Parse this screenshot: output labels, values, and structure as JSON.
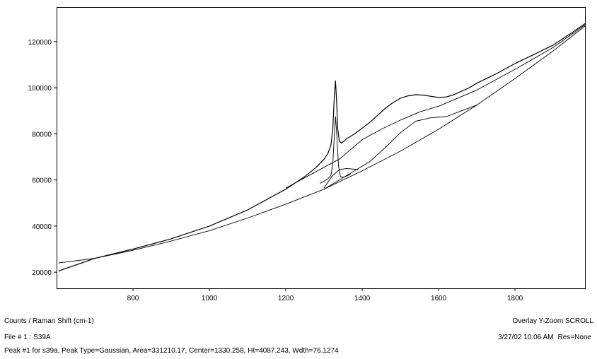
{
  "chart_data": {
    "type": "line",
    "xlim": [
      600,
      1985
    ],
    "ylim": [
      13000,
      135000
    ],
    "xticks": [
      800,
      1000,
      1200,
      1400,
      1600,
      1800
    ],
    "yticks": [
      20000,
      40000,
      60000,
      80000,
      100000,
      120000
    ],
    "xtick_labels": [
      "800",
      "1000",
      "1200",
      "1400",
      "1600",
      "1800"
    ],
    "ytick_labels": [
      "20000",
      "40000",
      "60000",
      "80000",
      "100000",
      "120000"
    ],
    "grid": false,
    "series": [
      {
        "role": "spectrum",
        "x": [
          605,
          700,
          800,
          900,
          1000,
          1100,
          1200,
          1250,
          1280,
          1300,
          1310,
          1318,
          1323,
          1327,
          1330,
          1333,
          1336,
          1340,
          1345,
          1350,
          1360,
          1380,
          1400,
          1420,
          1440,
          1460,
          1480,
          1500,
          1520,
          1540,
          1560,
          1580,
          1600,
          1620,
          1640,
          1660,
          1680,
          1700,
          1750,
          1800,
          1850,
          1900,
          1950,
          1985
        ],
        "y": [
          20500,
          26000,
          30000,
          34500,
          40000,
          47000,
          56000,
          61500,
          65500,
          69000,
          71500,
          75000,
          82000,
          96000,
          103000,
          94000,
          82000,
          77000,
          76000,
          76500,
          78000,
          80000,
          82500,
          85000,
          88000,
          91000,
          93500,
          95500,
          96500,
          97000,
          96800,
          96300,
          95800,
          96000,
          97000,
          98500,
          100000,
          102000,
          106000,
          110500,
          114500,
          118500,
          124000,
          128000
        ]
      },
      {
        "role": "baseline",
        "x": [
          605,
          700,
          800,
          900,
          1000,
          1100,
          1200,
          1300,
          1400,
          1500,
          1600,
          1700,
          1800,
          1900,
          1985
        ],
        "y": [
          24000,
          26000,
          29500,
          33500,
          38000,
          43500,
          49500,
          56000,
          64000,
          72500,
          82000,
          92500,
          104000,
          116000,
          127000
        ]
      },
      {
        "role": "baseline-plus-broad-peak",
        "x": [
          1200,
          1300,
          1340,
          1400,
          1450,
          1500,
          1550,
          1600,
          1650,
          1700,
          1800,
          1900,
          1985
        ],
        "y": [
          56500,
          65500,
          69000,
          77500,
          82000,
          86000,
          89500,
          92000,
          95500,
          99000,
          108000,
          117500,
          127500
        ]
      },
      {
        "role": "broad-band-component",
        "x": [
          1300,
          1380,
          1420,
          1460,
          1500,
          1540,
          1580,
          1620,
          1660,
          1700
        ],
        "y": [
          56000,
          64000,
          68000,
          74000,
          80500,
          85500,
          87000,
          87500,
          90000,
          92500
        ]
      },
      {
        "role": "gaussian-peak-component",
        "x": [
          1290,
          1310,
          1318,
          1323,
          1327,
          1330.258,
          1334,
          1338,
          1343,
          1352,
          1370
        ],
        "y": [
          58500,
          60500,
          62000,
          67000,
          79000,
          87500,
          78000,
          66000,
          61500,
          61200,
          62500
        ]
      },
      {
        "role": "shoulder-component",
        "x": [
          1300,
          1320,
          1340,
          1360,
          1390
        ],
        "y": [
          56500,
          61500,
          64500,
          65000,
          64500
        ]
      }
    ]
  },
  "footer": {
    "axis_label": "Counts / Raman Shift (cm-1)",
    "mode": "Overlay Y-Zoom SCROLL",
    "file": "File # 1 : S39A",
    "date": "3/27/02  10:06 AM",
    "resolution": "Res=None",
    "peak_info": "Peak #1 for s39a, Peak Type=Gaussian, Area=331210.17, Center=1330.258, Ht=4087.243, Wdth=76.1274"
  }
}
